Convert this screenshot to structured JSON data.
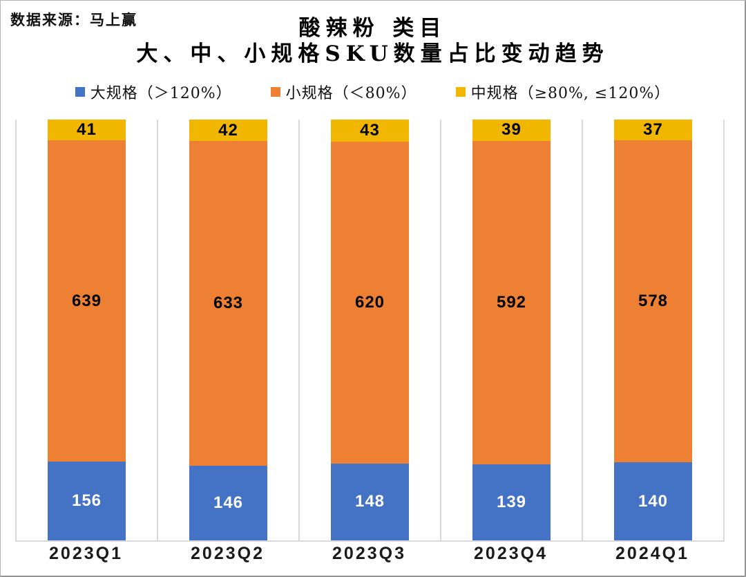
{
  "source_label": "数据来源：马上赢",
  "title": {
    "line1": "酸辣粉 类目",
    "line2": "大、中、小规格SKU数量占比变动趋势"
  },
  "chart_data": {
    "type": "bar",
    "subtype": "stacked-100-percent-column",
    "title": "酸辣粉 类目 大、中、小规格SKU数量占比变动趋势",
    "categories": [
      "2023Q1",
      "2023Q2",
      "2023Q3",
      "2023Q4",
      "2024Q1"
    ],
    "series": [
      {
        "name": "大规格（＞120%）",
        "color": "#4472C4",
        "label_color": "#ffffff",
        "values": [
          156,
          146,
          148,
          139,
          140
        ]
      },
      {
        "name": "小规格（＜80%）",
        "color": "#ED8032",
        "label_color": "#000000",
        "values": [
          639,
          633,
          620,
          592,
          578
        ]
      },
      {
        "name": "中规格（≥80%, ≤120%）",
        "color": "#F0B600",
        "label_color": "#000000",
        "values": [
          41,
          42,
          43,
          39,
          37
        ]
      }
    ],
    "stack_order": "series index 0 at bottom, last series on top",
    "legend_position": "top",
    "grid": "vertical category separator lines and bottom axis line only",
    "grid_color": "#D9D9D9",
    "data_labels": "raw counts shown centered in each segment"
  }
}
